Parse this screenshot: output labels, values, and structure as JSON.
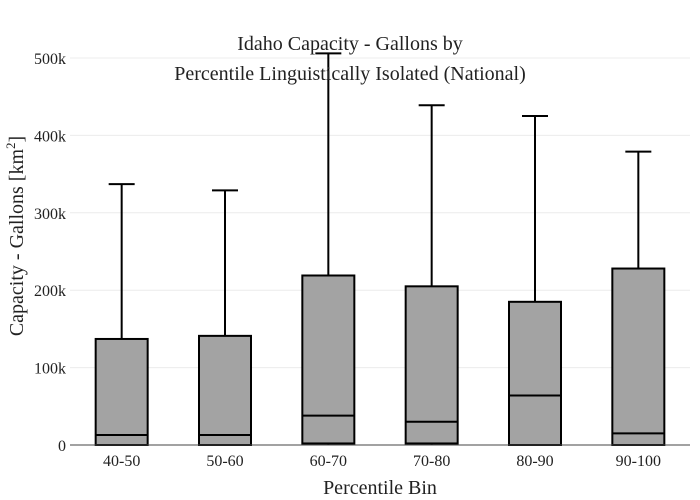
{
  "chart_data": {
    "type": "box",
    "title_lines": [
      "Idaho Capacity - Gallons by",
      "Percentile Linguistically Isolated (National)"
    ],
    "xlabel": "Percentile Bin",
    "ylabel_main": "Capacity - Gallons  [km",
    "ylabel_sup": "2",
    "ylabel_end": "]",
    "ylim": [
      0,
      500000
    ],
    "yticks": [
      {
        "value": 0,
        "label": "0"
      },
      {
        "value": 100000,
        "label": "100k"
      },
      {
        "value": 200000,
        "label": "200k"
      },
      {
        "value": 300000,
        "label": "300k"
      },
      {
        "value": 400000,
        "label": "400k"
      },
      {
        "value": 500000,
        "label": "500k"
      }
    ],
    "grid": true,
    "box_color": "#a3a3a3",
    "line_color": "#000000",
    "categories": [
      "40-50",
      "50-60",
      "60-70",
      "70-80",
      "80-90",
      "90-100"
    ],
    "boxes": [
      {
        "min": 0,
        "q1": 0,
        "median": 13000,
        "q3": 137000,
        "max": 337000
      },
      {
        "min": 0,
        "q1": 0,
        "median": 13000,
        "q3": 141000,
        "max": 329000
      },
      {
        "min": 0,
        "q1": 2000,
        "median": 38000,
        "q3": 219000,
        "max": 506000
      },
      {
        "min": 0,
        "q1": 2000,
        "median": 30000,
        "q3": 205000,
        "max": 439000
      },
      {
        "min": 0,
        "q1": 0,
        "median": 64000,
        "q3": 185000,
        "max": 425000
      },
      {
        "min": 0,
        "q1": 0,
        "median": 15000,
        "q3": 228000,
        "max": 379000
      }
    ]
  }
}
